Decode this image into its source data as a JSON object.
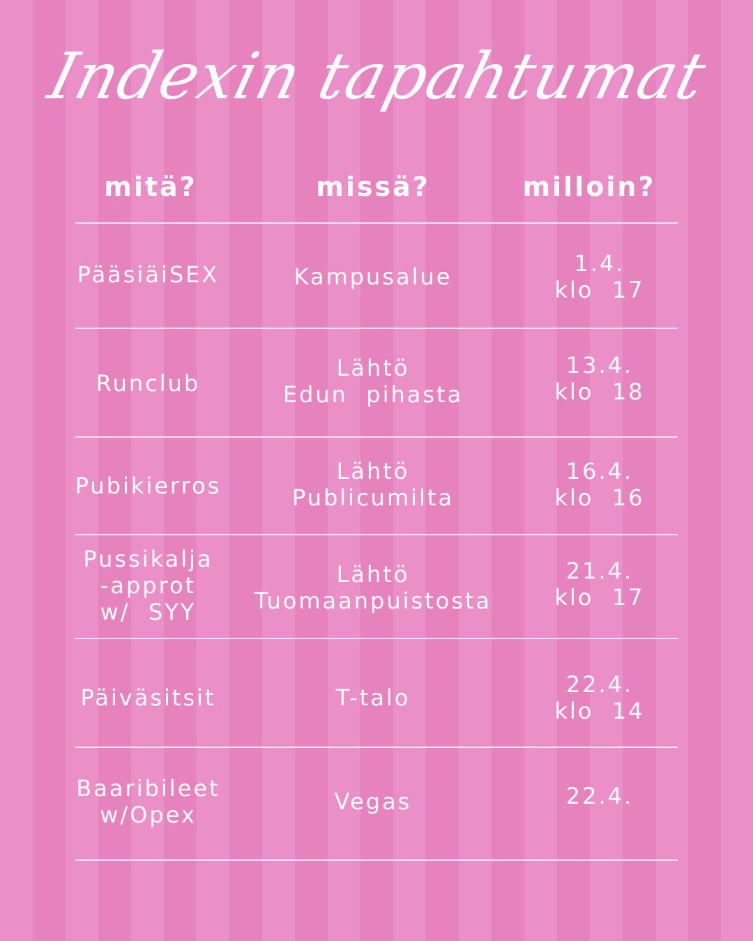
{
  "title": "Indexin tapahtumat",
  "headers": [
    "mitä?",
    "missä?",
    "milloin?"
  ],
  "rows": [
    {
      "what": "PääsiäiSEX",
      "where": "Kampusalue",
      "when": "1.4.\nklo  17"
    },
    {
      "what": "Runclub",
      "where": "Lähtö\nEdun  pihasta",
      "when": "13.4.\nklo  18"
    },
    {
      "what": "Pubikierros",
      "where": "Lähtö\nPublicumilta",
      "when": "16.4.\nklo  16"
    },
    {
      "what": "Pussikalja\n-approt\nw/  SYY",
      "where": "Lähtö\nTuomaanpuistosta",
      "when": "21.4.\nklo  17"
    },
    {
      "what": "Päiväsitsit",
      "where": "T-talo",
      "when": "22.4.\nklo  14"
    },
    {
      "what": "Baaribileet\nw/Opex",
      "where": "Vegas",
      "when": "22.4."
    }
  ],
  "colors": {
    "stripe_light": "#ea8fc7",
    "stripe_dark": "#e683bf",
    "text": "#ffffff"
  }
}
